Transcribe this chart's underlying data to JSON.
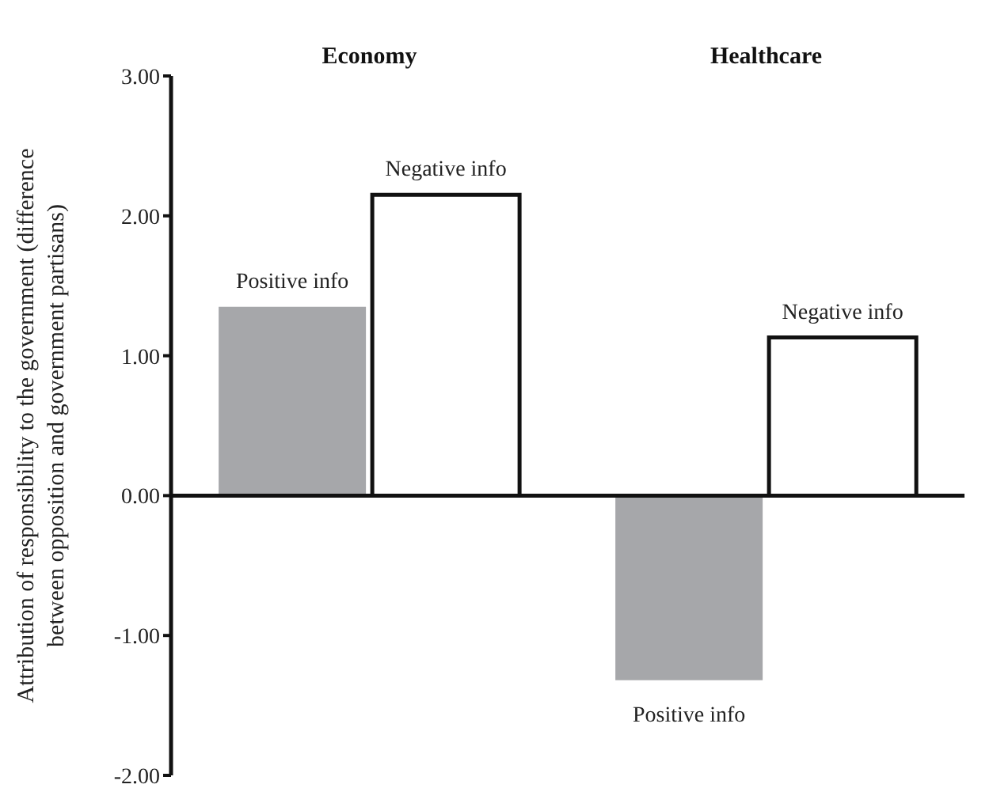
{
  "chart_data": {
    "type": "bar",
    "ylabel": "Attribution of responsibility to the government (difference between opposition and government partisans)",
    "categories": [
      "Economy",
      "Healthcare"
    ],
    "series": [
      {
        "name": "Positive info",
        "color": "#a6a7aa",
        "values": [
          1.35,
          -1.32
        ]
      },
      {
        "name": "Negative info",
        "color": "#ffffff",
        "values": [
          2.15,
          1.13
        ]
      }
    ],
    "ylim": [
      -2,
      3
    ],
    "yticks": [
      {
        "value": -2,
        "label": "-2.00"
      },
      {
        "value": -1,
        "label": "-1.00"
      },
      {
        "value": 0,
        "label": "0.00"
      },
      {
        "value": 1,
        "label": "1.00"
      },
      {
        "value": 2,
        "label": "2.00"
      },
      {
        "value": 3,
        "label": "3.00"
      }
    ],
    "ref_lines": [
      {
        "axis": "y",
        "value": 0
      }
    ],
    "grid": false,
    "legend": false
  }
}
